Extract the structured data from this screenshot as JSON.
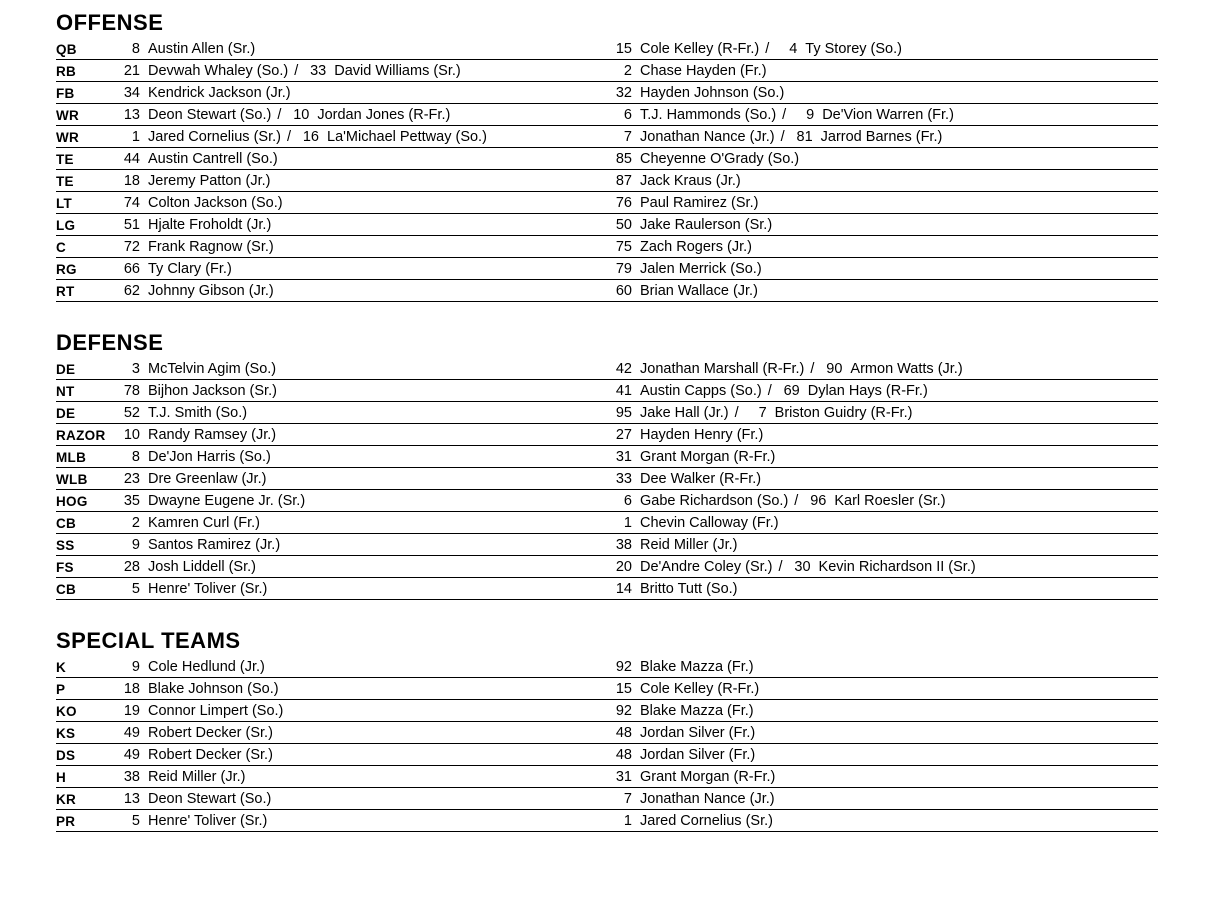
{
  "sections": [
    {
      "title": "OFFENSE",
      "rows": [
        {
          "pos": "QB",
          "col1": [
            {
              "num": "8",
              "name": "Austin Allen (Sr.)"
            }
          ],
          "col2": [
            {
              "num": "15",
              "name": "Cole Kelley (R-Fr.)"
            },
            {
              "num": "4",
              "name": "Ty Storey (So.)"
            }
          ]
        },
        {
          "pos": "RB",
          "col1": [
            {
              "num": "21",
              "name": "Devwah Whaley (So.)"
            },
            {
              "num": "33",
              "name": "David Williams (Sr.)"
            }
          ],
          "col2": [
            {
              "num": "2",
              "name": "Chase Hayden (Fr.)"
            }
          ]
        },
        {
          "pos": "FB",
          "col1": [
            {
              "num": "34",
              "name": "Kendrick Jackson (Jr.)"
            }
          ],
          "col2": [
            {
              "num": "32",
              "name": "Hayden Johnson (So.)"
            }
          ]
        },
        {
          "pos": "WR",
          "col1": [
            {
              "num": "13",
              "name": "Deon Stewart (So.)"
            },
            {
              "num": "10",
              "name": "Jordan Jones (R-Fr.)"
            }
          ],
          "col2": [
            {
              "num": "6",
              "name": "T.J. Hammonds (So.)"
            },
            {
              "num": "9",
              "name": "De'Vion Warren (Fr.)"
            }
          ]
        },
        {
          "pos": "WR",
          "col1": [
            {
              "num": "1",
              "name": "Jared Cornelius (Sr.)"
            },
            {
              "num": "16",
              "name": "La'Michael Pettway (So.)"
            }
          ],
          "col2": [
            {
              "num": "7",
              "name": "Jonathan Nance (Jr.)"
            },
            {
              "num": "81",
              "name": "Jarrod Barnes (Fr.)"
            }
          ]
        },
        {
          "pos": "TE",
          "col1": [
            {
              "num": "44",
              "name": "Austin Cantrell (So.)"
            }
          ],
          "col2": [
            {
              "num": "85",
              "name": "Cheyenne O'Grady (So.)"
            }
          ]
        },
        {
          "pos": "TE",
          "col1": [
            {
              "num": "18",
              "name": "Jeremy Patton (Jr.)"
            }
          ],
          "col2": [
            {
              "num": "87",
              "name": "Jack Kraus (Jr.)"
            }
          ]
        },
        {
          "pos": "LT",
          "col1": [
            {
              "num": "74",
              "name": "Colton Jackson (So.)"
            }
          ],
          "col2": [
            {
              "num": "76",
              "name": "Paul Ramirez (Sr.)"
            }
          ]
        },
        {
          "pos": "LG",
          "col1": [
            {
              "num": "51",
              "name": "Hjalte Froholdt (Jr.)"
            }
          ],
          "col2": [
            {
              "num": "50",
              "name": "Jake Raulerson (Sr.)"
            }
          ]
        },
        {
          "pos": "C",
          "col1": [
            {
              "num": "72",
              "name": "Frank Ragnow (Sr.)"
            }
          ],
          "col2": [
            {
              "num": "75",
              "name": "Zach Rogers (Jr.)"
            }
          ]
        },
        {
          "pos": "RG",
          "col1": [
            {
              "num": "66",
              "name": "Ty Clary (Fr.)"
            }
          ],
          "col2": [
            {
              "num": "79",
              "name": "Jalen Merrick (So.)"
            }
          ]
        },
        {
          "pos": "RT",
          "col1": [
            {
              "num": "62",
              "name": "Johnny Gibson (Jr.)"
            }
          ],
          "col2": [
            {
              "num": "60",
              "name": "Brian Wallace (Jr.)"
            }
          ]
        }
      ]
    },
    {
      "title": "DEFENSE",
      "rows": [
        {
          "pos": "DE",
          "col1": [
            {
              "num": "3",
              "name": "McTelvin Agim (So.)"
            }
          ],
          "col2": [
            {
              "num": "42",
              "name": "Jonathan Marshall (R-Fr.)"
            },
            {
              "num": "90",
              "name": "Armon Watts (Jr.)"
            }
          ]
        },
        {
          "pos": "NT",
          "col1": [
            {
              "num": "78",
              "name": "Bijhon Jackson (Sr.)"
            }
          ],
          "col2": [
            {
              "num": "41",
              "name": "Austin Capps (So.)"
            },
            {
              "num": "69",
              "name": "Dylan Hays (R-Fr.)"
            }
          ]
        },
        {
          "pos": "DE",
          "col1": [
            {
              "num": "52",
              "name": "T.J. Smith (So.)"
            }
          ],
          "col2": [
            {
              "num": "95",
              "name": "Jake Hall (Jr.)"
            },
            {
              "num": "7",
              "name": "Briston Guidry (R-Fr.)"
            }
          ]
        },
        {
          "pos": "RAZOR",
          "col1": [
            {
              "num": "10",
              "name": "Randy Ramsey (Jr.)"
            }
          ],
          "col2": [
            {
              "num": "27",
              "name": "Hayden Henry (Fr.)"
            }
          ]
        },
        {
          "pos": "MLB",
          "col1": [
            {
              "num": "8",
              "name": "De'Jon Harris (So.)"
            }
          ],
          "col2": [
            {
              "num": "31",
              "name": "Grant Morgan (R-Fr.)"
            }
          ]
        },
        {
          "pos": "WLB",
          "col1": [
            {
              "num": "23",
              "name": "Dre Greenlaw (Jr.)"
            }
          ],
          "col2": [
            {
              "num": "33",
              "name": "Dee Walker (R-Fr.)"
            }
          ]
        },
        {
          "pos": "HOG",
          "col1": [
            {
              "num": "35",
              "name": "Dwayne Eugene Jr. (Sr.)"
            }
          ],
          "col2": [
            {
              "num": "6",
              "name": "Gabe Richardson (So.)"
            },
            {
              "num": "96",
              "name": "Karl Roesler (Sr.)"
            }
          ]
        },
        {
          "pos": "CB",
          "col1": [
            {
              "num": "2",
              "name": "Kamren Curl (Fr.)"
            }
          ],
          "col2": [
            {
              "num": "1",
              "name": "Chevin Calloway (Fr.)"
            }
          ]
        },
        {
          "pos": "SS",
          "col1": [
            {
              "num": "9",
              "name": "Santos Ramirez (Jr.)"
            }
          ],
          "col2": [
            {
              "num": "38",
              "name": "Reid Miller (Jr.)"
            }
          ]
        },
        {
          "pos": "FS",
          "col1": [
            {
              "num": "28",
              "name": "Josh Liddell (Sr.)"
            }
          ],
          "col2": [
            {
              "num": "20",
              "name": "De'Andre Coley (Sr.)"
            },
            {
              "num": "30",
              "name": "Kevin Richardson II (Sr.)"
            }
          ]
        },
        {
          "pos": "CB",
          "col1": [
            {
              "num": "5",
              "name": "Henre' Toliver (Sr.)"
            }
          ],
          "col2": [
            {
              "num": "14",
              "name": "Britto Tutt (So.)"
            }
          ]
        }
      ]
    },
    {
      "title": "SPECIAL TEAMS",
      "rows": [
        {
          "pos": "K",
          "col1": [
            {
              "num": "9",
              "name": "Cole Hedlund (Jr.)"
            }
          ],
          "col2": [
            {
              "num": "92",
              "name": "Blake Mazza (Fr.)"
            }
          ]
        },
        {
          "pos": "P",
          "col1": [
            {
              "num": "18",
              "name": "Blake Johnson (So.)"
            }
          ],
          "col2": [
            {
              "num": "15",
              "name": "Cole Kelley (R-Fr.)"
            }
          ]
        },
        {
          "pos": "KO",
          "col1": [
            {
              "num": "19",
              "name": "Connor Limpert (So.)"
            }
          ],
          "col2": [
            {
              "num": "92",
              "name": "Blake Mazza (Fr.)"
            }
          ]
        },
        {
          "pos": "KS",
          "col1": [
            {
              "num": "49",
              "name": "Robert Decker (Sr.)"
            }
          ],
          "col2": [
            {
              "num": "48",
              "name": "Jordan Silver (Fr.)"
            }
          ]
        },
        {
          "pos": "DS",
          "col1": [
            {
              "num": "49",
              "name": "Robert Decker (Sr.)"
            }
          ],
          "col2": [
            {
              "num": "48",
              "name": "Jordan Silver (Fr.)"
            }
          ]
        },
        {
          "pos": "H",
          "col1": [
            {
              "num": "38",
              "name": "Reid Miller (Jr.)"
            }
          ],
          "col2": [
            {
              "num": "31",
              "name": "Grant Morgan (R-Fr.)"
            }
          ]
        },
        {
          "pos": "KR",
          "col1": [
            {
              "num": "13",
              "name": "Deon Stewart (So.)"
            }
          ],
          "col2": [
            {
              "num": "7",
              "name": "Jonathan Nance (Jr.)"
            }
          ]
        },
        {
          "pos": "PR",
          "col1": [
            {
              "num": "5",
              "name": "Henre' Toliver (Sr.)"
            }
          ],
          "col2": [
            {
              "num": "1",
              "name": "Jared Cornelius (Sr.)"
            }
          ]
        }
      ]
    }
  ],
  "separator": "/"
}
